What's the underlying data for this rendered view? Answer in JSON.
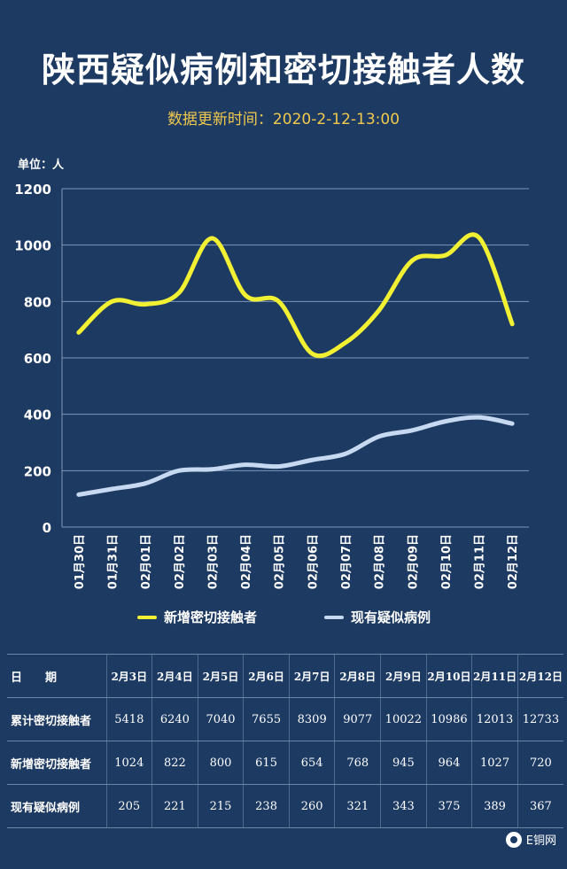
{
  "title": "陕西疑似病例和密切接触者人数",
  "subtitle": "数据更新时间：2020-2-12-13:00",
  "unit_label": "单位：人",
  "colors": {
    "background": "#1d3a63",
    "grid": "#7e96b8",
    "contacts_line": "#f2f032",
    "suspected_line": "#c7d9f0",
    "subtitle": "#f2c94c"
  },
  "chart_data": {
    "type": "line",
    "categories": [
      "01月30日",
      "01月31日",
      "02月01日",
      "02月02日",
      "02月03日",
      "02月04日",
      "02月05日",
      "02月06日",
      "02月07日",
      "02月08日",
      "02月09日",
      "02月10日",
      "02月11日",
      "02月12日"
    ],
    "series": [
      {
        "name": "新增密切接触者",
        "values": [
          690,
          800,
          790,
          830,
          1024,
          822,
          800,
          615,
          654,
          768,
          945,
          964,
          1027,
          720
        ]
      },
      {
        "name": "现有疑似病例",
        "values": [
          115,
          135,
          155,
          200,
          205,
          221,
          215,
          238,
          260,
          321,
          343,
          375,
          389,
          367
        ]
      }
    ],
    "ylim": [
      0,
      1200
    ],
    "yticks": [
      "0",
      "200",
      "400",
      "600",
      "800",
      "1000",
      "1200"
    ],
    "grid": true,
    "legend_position": "bottom"
  },
  "table": {
    "header_label": "日　　期",
    "dates": [
      "2月3日",
      "2月4日",
      "2月5日",
      "2月6日",
      "2月7日",
      "2月8日",
      "2月9日",
      "2月10日",
      "2月11日",
      "2月12日"
    ],
    "rows": [
      {
        "label": "累计密切接触者",
        "values": [
          "5418",
          "6240",
          "7040",
          "7655",
          "8309",
          "9077",
          "10022",
          "10986",
          "12013",
          "12733"
        ]
      },
      {
        "label": "新增密切接触者",
        "values": [
          "1024",
          "822",
          "800",
          "615",
          "654",
          "768",
          "945",
          "964",
          "1027",
          "720"
        ]
      },
      {
        "label": "现有疑似病例",
        "values": [
          "205",
          "221",
          "215",
          "238",
          "260",
          "321",
          "343",
          "375",
          "389",
          "367"
        ]
      }
    ]
  },
  "watermark": "E铜网"
}
